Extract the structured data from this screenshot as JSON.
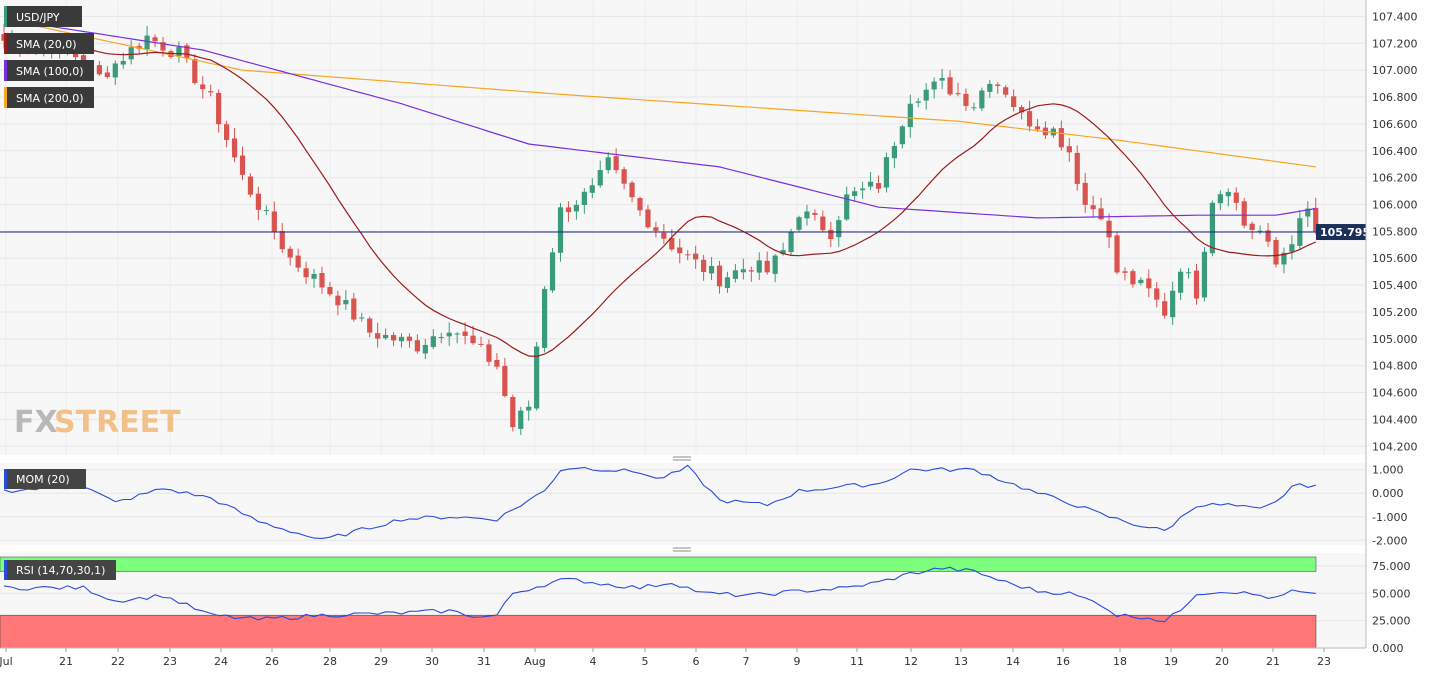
{
  "chart_data": [
    {
      "type": "candlestick",
      "symbol": "USD/JPY",
      "last_price_label": "105.795",
      "last_price": 105.795,
      "ylim": [
        104.15,
        107.5
      ],
      "y_ticks": [
        "107.400",
        "107.200",
        "107.000",
        "106.800",
        "106.600",
        "106.400",
        "106.200",
        "106.000",
        "105.800",
        "105.600",
        "105.400",
        "105.200",
        "105.000",
        "104.800",
        "104.600",
        "104.400",
        "104.200"
      ],
      "x_tick_labels": [
        "Jul",
        "21",
        "22",
        "23",
        "24",
        "26",
        "28",
        "29",
        "30",
        "31",
        "Aug",
        "4",
        "5",
        "6",
        "7",
        "9",
        "11",
        "12",
        "13",
        "14",
        "16",
        "18",
        "19",
        "20",
        "21",
        "23"
      ],
      "legend": [
        "USD/JPY",
        "SMA (20,0)",
        "SMA (100,0)",
        "SMA (200,0)"
      ],
      "colors": {
        "up": "#3a9a7a",
        "down": "#d9534f",
        "sma20": "#9b1c1c",
        "sma100": "#7a2ee0",
        "sma200": "#f5a623",
        "price_line": "#1a237e"
      },
      "waypoints": [
        [
          0,
          107.22
        ],
        [
          8,
          107.16
        ],
        [
          12,
          106.95
        ],
        [
          18,
          107.25
        ],
        [
          22,
          107.12
        ],
        [
          26,
          106.78
        ],
        [
          30,
          106.2
        ],
        [
          36,
          105.6
        ],
        [
          42,
          105.3
        ],
        [
          46,
          105.05
        ],
        [
          52,
          104.95
        ],
        [
          56,
          105.1
        ],
        [
          58,
          105.0
        ],
        [
          62,
          104.8
        ],
        [
          64,
          104.35
        ],
        [
          66,
          104.5
        ],
        [
          68,
          105.4
        ],
        [
          70,
          105.95
        ],
        [
          74,
          106.1
        ],
        [
          76,
          106.3
        ],
        [
          80,
          105.95
        ],
        [
          84,
          105.7
        ],
        [
          86,
          105.6
        ],
        [
          90,
          105.45
        ],
        [
          94,
          105.55
        ],
        [
          96,
          105.5
        ],
        [
          98,
          105.65
        ],
        [
          100,
          105.95
        ],
        [
          104,
          105.8
        ],
        [
          106,
          106.05
        ],
        [
          110,
          106.15
        ],
        [
          114,
          106.8
        ],
        [
          118,
          106.9
        ],
        [
          122,
          106.75
        ],
        [
          124,
          106.95
        ],
        [
          126,
          106.85
        ],
        [
          128,
          106.65
        ],
        [
          132,
          106.55
        ],
        [
          134,
          106.4
        ],
        [
          136,
          106.0
        ],
        [
          138,
          105.95
        ],
        [
          140,
          105.5
        ],
        [
          144,
          105.35
        ],
        [
          146,
          105.2
        ],
        [
          148,
          105.55
        ],
        [
          150,
          105.35
        ],
        [
          152,
          106.05
        ],
        [
          154,
          106.15
        ],
        [
          156,
          105.85
        ],
        [
          158,
          105.8
        ],
        [
          160,
          105.55
        ],
        [
          162,
          105.75
        ],
        [
          164,
          105.95
        ],
        [
          165,
          105.8
        ]
      ],
      "sma200_path": [
        [
          0,
          107.38
        ],
        [
          30,
          107.0
        ],
        [
          70,
          106.82
        ],
        [
          120,
          106.62
        ],
        [
          140,
          106.48
        ],
        [
          165,
          106.28
        ]
      ],
      "sma100_path": [
        [
          0,
          107.38
        ],
        [
          25,
          107.15
        ],
        [
          50,
          106.75
        ],
        [
          66,
          106.45
        ],
        [
          90,
          106.28
        ],
        [
          110,
          105.98
        ],
        [
          130,
          105.9
        ],
        [
          150,
          105.92
        ],
        [
          160,
          105.92
        ],
        [
          165,
          105.97
        ]
      ]
    },
    {
      "type": "line",
      "indicator": "MOM (20)",
      "ylim": [
        -2.2,
        1.2
      ],
      "y_ticks": [
        "1.000",
        "0.000",
        "-1.000",
        "-2.000"
      ],
      "waypoints": [
        [
          0,
          0.1
        ],
        [
          10,
          0.3
        ],
        [
          14,
          -0.4
        ],
        [
          20,
          0.2
        ],
        [
          26,
          -0.2
        ],
        [
          32,
          -1.2
        ],
        [
          40,
          -2.0
        ],
        [
          50,
          -1.1
        ],
        [
          56,
          -1.0
        ],
        [
          62,
          -1.1
        ],
        [
          64,
          -0.7
        ],
        [
          68,
          0.1
        ],
        [
          70,
          1.0
        ],
        [
          72,
          1.1
        ],
        [
          76,
          1.0
        ],
        [
          80,
          0.9
        ],
        [
          82,
          0.6
        ],
        [
          84,
          0.8
        ],
        [
          86,
          1.1
        ],
        [
          90,
          -0.3
        ],
        [
          96,
          -0.5
        ],
        [
          100,
          0.1
        ],
        [
          106,
          0.3
        ],
        [
          110,
          0.4
        ],
        [
          114,
          1.0
        ],
        [
          118,
          1.0
        ],
        [
          122,
          1.0
        ],
        [
          126,
          0.5
        ],
        [
          130,
          0.0
        ],
        [
          134,
          -0.4
        ],
        [
          138,
          -0.9
        ],
        [
          142,
          -1.3
        ],
        [
          146,
          -1.6
        ],
        [
          150,
          -0.5
        ],
        [
          154,
          -0.5
        ],
        [
          158,
          -0.7
        ],
        [
          160,
          -0.4
        ],
        [
          162,
          0.3
        ],
        [
          165,
          0.35
        ]
      ]
    },
    {
      "type": "line",
      "indicator": "RSI (14,70,30,1)",
      "ylim": [
        0,
        85
      ],
      "y_ticks": [
        "75.000",
        "50.000",
        "25.000",
        "0.000"
      ],
      "overbought": 70,
      "oversold": 30,
      "waypoints": [
        [
          0,
          55
        ],
        [
          10,
          55
        ],
        [
          14,
          43
        ],
        [
          20,
          48
        ],
        [
          26,
          30
        ],
        [
          32,
          26
        ],
        [
          40,
          30
        ],
        [
          50,
          32
        ],
        [
          56,
          34
        ],
        [
          60,
          28
        ],
        [
          62,
          30
        ],
        [
          64,
          50
        ],
        [
          70,
          62
        ],
        [
          72,
          62
        ],
        [
          76,
          58
        ],
        [
          80,
          55
        ],
        [
          84,
          60
        ],
        [
          88,
          50
        ],
        [
          94,
          48
        ],
        [
          100,
          52
        ],
        [
          106,
          55
        ],
        [
          110,
          60
        ],
        [
          114,
          68
        ],
        [
          118,
          73
        ],
        [
          122,
          70
        ],
        [
          126,
          60
        ],
        [
          130,
          52
        ],
        [
          134,
          50
        ],
        [
          138,
          40
        ],
        [
          140,
          30
        ],
        [
          144,
          28
        ],
        [
          146,
          24
        ],
        [
          148,
          35
        ],
        [
          150,
          50
        ],
        [
          154,
          52
        ],
        [
          158,
          48
        ],
        [
          160,
          45
        ],
        [
          162,
          52
        ],
        [
          165,
          48
        ]
      ]
    }
  ]
}
